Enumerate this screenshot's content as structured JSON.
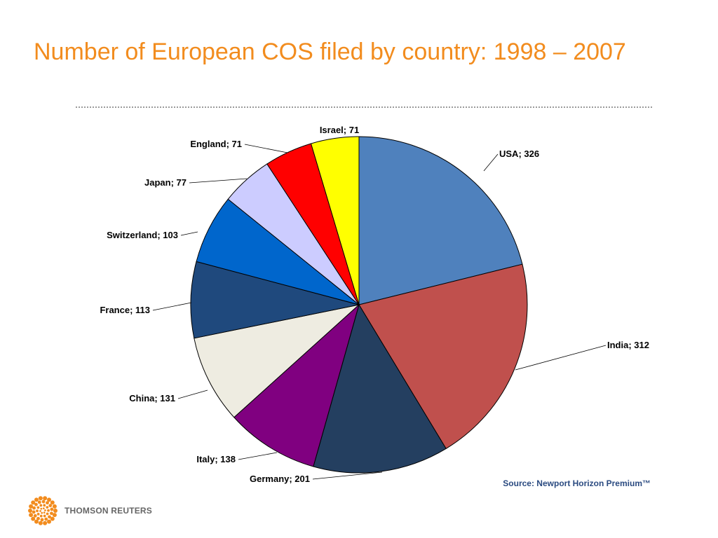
{
  "slide": {
    "source": "Source: Newport Horizon Premium™",
    "brand": "THOMSON REUTERS"
  },
  "chart_data": {
    "type": "pie",
    "title": "Number of European COS filed by country: 1998 – 2007",
    "label_format": "{name}; {value}",
    "slices": [
      {
        "name": "USA",
        "value": 326,
        "color": "#4f81bd"
      },
      {
        "name": "India",
        "value": 312,
        "color": "#c0504d"
      },
      {
        "name": "Germany",
        "value": 201,
        "color": "#243f60"
      },
      {
        "name": "Italy",
        "value": 138,
        "color": "#800080"
      },
      {
        "name": "China",
        "value": 131,
        "color": "#eeece1"
      },
      {
        "name": "France",
        "value": 113,
        "color": "#1f497d"
      },
      {
        "name": "Switzerland",
        "value": 103,
        "color": "#0066cc"
      },
      {
        "name": "Japan",
        "value": 77,
        "color": "#ccccff"
      },
      {
        "name": "England",
        "value": 71,
        "color": "#ff0000"
      },
      {
        "name": "Israel",
        "value": 71,
        "color": "#ffff00"
      }
    ],
    "legend": "none",
    "data_labels": "outside-with-leader-lines",
    "start_angle": "12 o'clock",
    "direction": "clockwise"
  }
}
